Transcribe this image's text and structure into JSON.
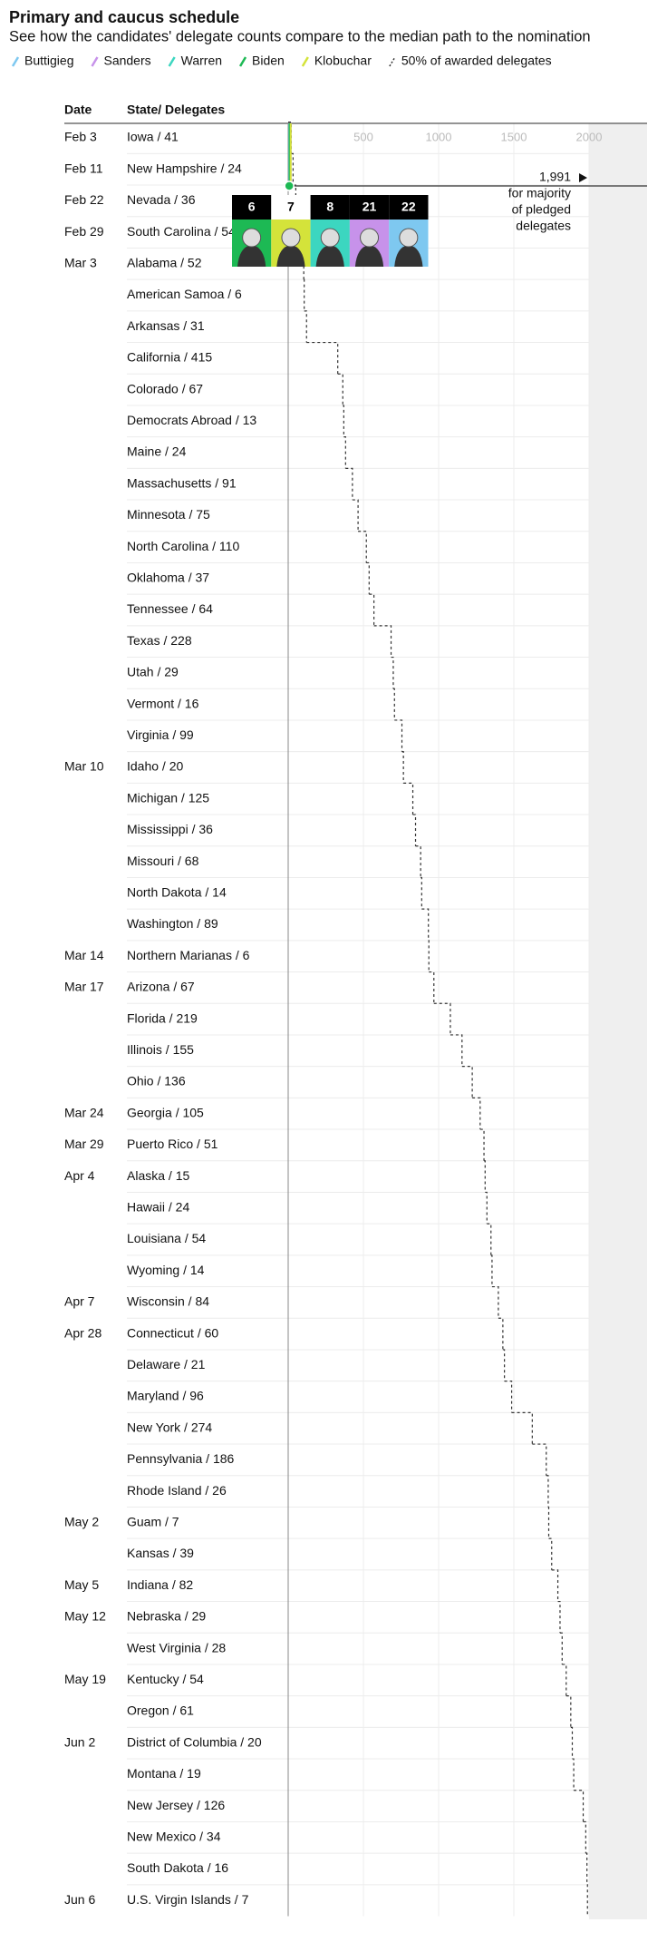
{
  "title": "Primary and caucus schedule",
  "subtitle": "See how the candidates' delegate counts compare to the median path to the nomination",
  "chart_data": {
    "type": "step",
    "columns": [
      "Date",
      "State/ Delegates"
    ],
    "xlim": [
      0,
      2000
    ],
    "xticks": [
      500,
      1000,
      1500,
      2000
    ],
    "series": [
      {
        "name": "Buttigieg",
        "color": "#7ec8f0",
        "value": 22
      },
      {
        "name": "Sanders",
        "color": "#c792ea",
        "value": 21
      },
      {
        "name": "Warren",
        "color": "#3cd6c0",
        "value": 8
      },
      {
        "name": "Biden",
        "color": "#1db954",
        "value": 6
      },
      {
        "name": "Klobuchar",
        "color": "#d4e33a",
        "value": 7
      }
    ],
    "median": {
      "name": "50% of awarded delegates",
      "color": "#333333",
      "values": [
        20.5,
        12,
        18,
        27,
        26,
        3,
        15.5,
        207.5,
        33.5,
        6.5,
        12,
        45.5,
        37.5,
        55,
        18.5,
        32,
        114,
        14.5,
        8,
        49.5,
        10,
        62.5,
        18,
        34,
        7,
        44.5,
        3,
        33.5,
        109.5,
        77.5,
        68,
        52.5,
        25.5,
        7.5,
        12,
        27,
        7,
        42,
        30,
        10.5,
        48,
        137,
        93,
        13,
        3.5,
        19.5,
        41,
        14.5,
        14,
        27,
        30.5,
        10,
        9.5,
        63,
        17,
        8,
        3.5
      ]
    },
    "threshold": {
      "value": 1991,
      "label": "1,991",
      "note": [
        "for majority",
        "of pledged",
        "delegates"
      ]
    },
    "dates": [
      "Feb 3",
      "Feb 11",
      "Feb 22",
      "Feb 29",
      "Mar 3",
      null,
      null,
      null,
      null,
      null,
      null,
      null,
      null,
      null,
      null,
      null,
      null,
      null,
      null,
      null,
      "Mar 10",
      null,
      null,
      null,
      null,
      null,
      "Mar 14",
      "Mar 17",
      null,
      null,
      null,
      "Mar 24",
      "Mar 29",
      "Apr 4",
      null,
      null,
      null,
      "Apr 7",
      "Apr 28",
      null,
      null,
      null,
      null,
      null,
      "May 2",
      null,
      "May 5",
      "May 12",
      null,
      "May 19",
      null,
      "Jun 2",
      null,
      null,
      null,
      null,
      "Jun 6"
    ],
    "categories": [
      "Iowa / 41",
      "New Hampshire / 24",
      "Nevada / 36",
      "South Carolina / 54",
      "Alabama / 52",
      "American Samoa / 6",
      "Arkansas / 31",
      "California / 415",
      "Colorado / 67",
      "Democrats Abroad / 13",
      "Maine / 24",
      "Massachusetts / 91",
      "Minnesota / 75",
      "North Carolina / 110",
      "Oklahoma / 37",
      "Tennessee / 64",
      "Texas / 228",
      "Utah / 29",
      "Vermont / 16",
      "Virginia / 99",
      "Idaho / 20",
      "Michigan / 125",
      "Mississippi / 36",
      "Missouri / 68",
      "North Dakota / 14",
      "Washington / 89",
      "Northern Marianas / 6",
      "Arizona / 67",
      "Florida / 219",
      "Illinois / 155",
      "Ohio / 136",
      "Georgia / 105",
      "Puerto Rico / 51",
      "Alaska / 15",
      "Hawaii / 24",
      "Louisiana / 54",
      "Wyoming / 14",
      "Wisconsin / 84",
      "Connecticut / 60",
      "Delaware / 21",
      "Maryland / 96",
      "New York / 274",
      "Pennsylvania / 186",
      "Rhode Island / 26",
      "Guam / 7",
      "Kansas / 39",
      "Indiana / 82",
      "Nebraska / 29",
      "West Virginia / 28",
      "Kentucky / 54",
      "Oregon / 61",
      "District of Columbia / 20",
      "Montana / 19",
      "New Jersey / 126",
      "New Mexico / 34",
      "South Dakota / 16",
      "U.S. Virgin Islands / 7"
    ]
  }
}
